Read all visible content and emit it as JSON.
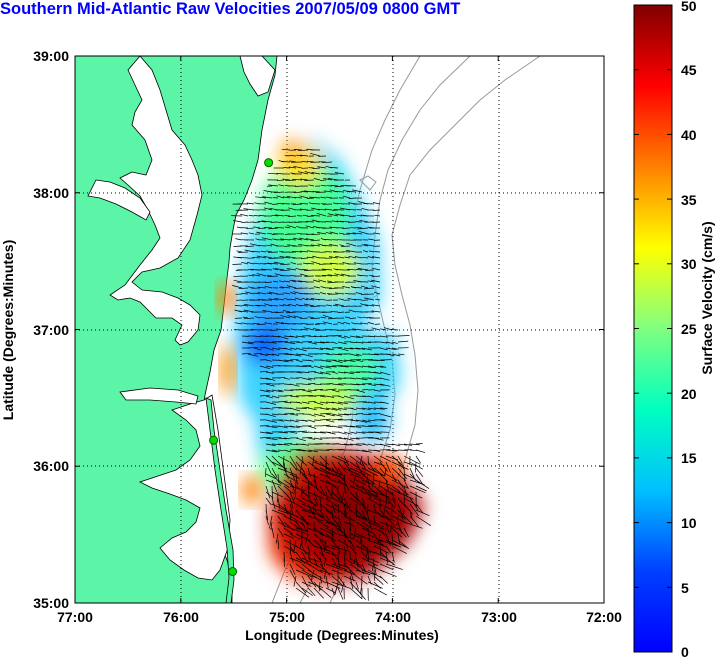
{
  "title": "Southern Mid-Atlantic Raw Velocities 2007/05/09 0800 GMT",
  "map": {
    "xlabel": "Longitude (Degrees:Minutes)",
    "ylabel": "Latitude (Degrees:Minutes)",
    "x_ticks": [
      "77:00",
      "76:00",
      "75:00",
      "74:00",
      "73:00",
      "72:00"
    ],
    "y_ticks": [
      "39:00",
      "38:00",
      "37:00",
      "36:00",
      "35:00"
    ],
    "lon_range": [
      -77,
      -72
    ],
    "lat_range": [
      35,
      39
    ],
    "land_color": "#5cf5a8",
    "grid": "dotted"
  },
  "colorbar": {
    "label": "Surface Velocity (cm/s)",
    "ticks": [
      "50",
      "45",
      "40",
      "35",
      "30",
      "25",
      "20",
      "15",
      "10",
      "5",
      "0"
    ],
    "range": [
      0,
      50
    ],
    "colormap": "jet"
  },
  "stations": [
    {
      "lon": -75.17,
      "lat": 38.22
    },
    {
      "lon": -75.69,
      "lat": 36.19
    },
    {
      "lon": -75.51,
      "lat": 35.23
    }
  ]
}
